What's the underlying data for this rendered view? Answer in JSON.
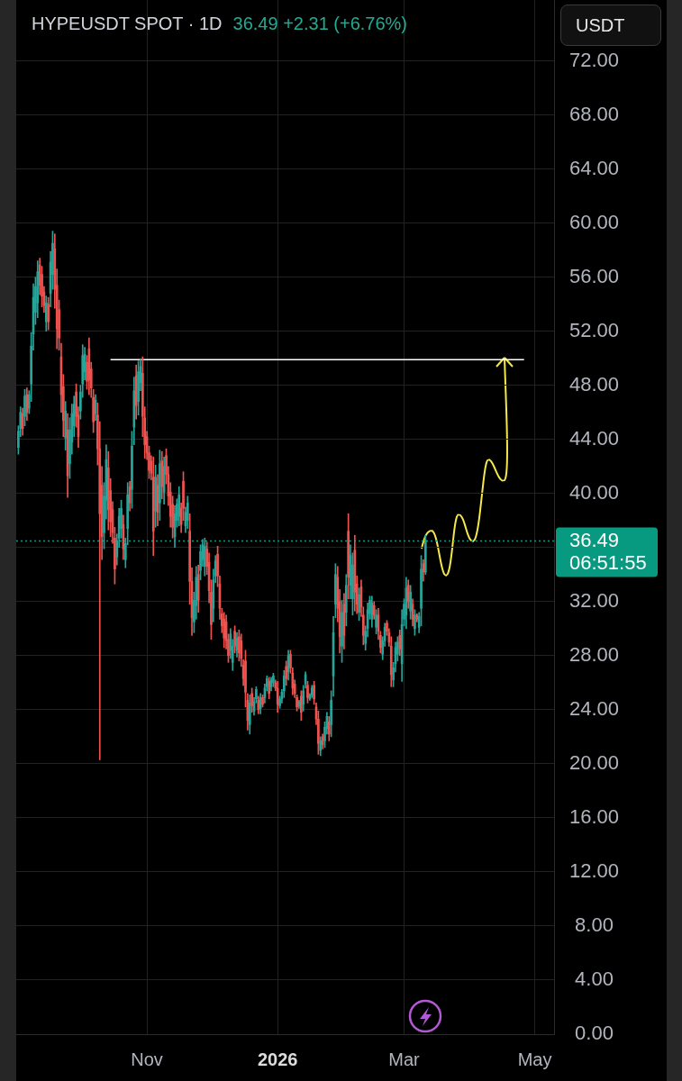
{
  "chart_data": {
    "type": "candlestick",
    "title": "HYPEUSDT SPOT · 1D",
    "subtitle": "36.49 +2.31 (+6.76%)",
    "ylabel": "USDT",
    "annotations": [
      "06:51:55"
    ],
    "xlim": [
      "2025-09-01",
      "2026-05-10"
    ],
    "xticks": [
      {
        "value": "2025-11-01",
        "label": "Nov"
      },
      {
        "value": "2026-01-01",
        "label": "2026"
      },
      {
        "value": "2026-03-01",
        "label": "Mar"
      },
      {
        "value": "2026-05-01",
        "label": "May"
      }
    ],
    "ylim": [
      0,
      76.5
    ],
    "yticks": [
      {
        "value": 0,
        "label": "0.00"
      },
      {
        "value": 4,
        "label": "4.00"
      },
      {
        "value": 8,
        "label": "8.00"
      },
      {
        "value": 12,
        "label": "12.00"
      },
      {
        "value": 16,
        "label": "16.00"
      },
      {
        "value": 20,
        "label": "20.00"
      },
      {
        "value": 24,
        "label": "24.00"
      },
      {
        "value": 28,
        "label": "28.00"
      },
      {
        "value": 32,
        "label": "32.00"
      },
      {
        "value": 36,
        "label": null
      },
      {
        "value": 40,
        "label": "40.00"
      },
      {
        "value": 44,
        "label": "44.00"
      },
      {
        "value": 48,
        "label": "48.00"
      },
      {
        "value": 52,
        "label": "52.00"
      },
      {
        "value": 56,
        "label": "56.00"
      },
      {
        "value": 60,
        "label": "60.00"
      },
      {
        "value": 64,
        "label": "64.00"
      },
      {
        "value": 68,
        "label": "68.00"
      },
      {
        "value": 72,
        "label": "72.00"
      }
    ],
    "grid": true,
    "ref_lines": [
      {
        "axis": "y",
        "value": 36.49,
        "label": "36.49",
        "color": "#089981",
        "line_style": "dotted"
      }
    ],
    "series": [
      {
        "x": [
          "2025-09-02",
          "2025-09-03",
          "2025-09-04",
          "2025-09-05",
          "2025-09-06",
          "2025-09-07",
          "2025-09-08",
          "2025-09-09",
          "2025-09-10",
          "2025-09-11",
          "2025-09-12",
          "2025-09-13",
          "2025-09-14",
          "2025-09-15",
          "2025-09-16",
          "2025-09-17",
          "2025-09-18",
          "2025-09-19",
          "2025-09-20",
          "2025-09-21",
          "2025-09-22",
          "2025-09-23",
          "2025-09-24",
          "2025-09-25",
          "2025-09-26",
          "2025-09-27",
          "2025-09-28",
          "2025-09-29",
          "2025-09-30",
          "2025-10-01",
          "2025-10-02",
          "2025-10-03",
          "2025-10-04",
          "2025-10-05",
          "2025-10-06",
          "2025-10-07",
          "2025-10-08",
          "2025-10-09",
          "2025-10-10",
          "2025-10-11",
          "2025-10-12",
          "2025-10-13",
          "2025-10-14",
          "2025-10-15",
          "2025-10-16",
          "2025-10-17",
          "2025-10-18",
          "2025-10-19",
          "2025-10-20",
          "2025-10-21",
          "2025-10-22",
          "2025-10-23",
          "2025-10-24",
          "2025-10-25",
          "2025-10-26",
          "2025-10-27",
          "2025-10-28",
          "2025-10-29",
          "2025-10-30",
          "2025-10-31",
          "2025-11-01",
          "2025-11-02",
          "2025-11-03",
          "2025-11-04",
          "2025-11-05",
          "2025-11-06",
          "2025-11-07",
          "2025-11-08",
          "2025-11-09",
          "2025-11-10",
          "2025-11-11",
          "2025-11-12",
          "2025-11-13",
          "2025-11-14",
          "2025-11-15",
          "2025-11-16",
          "2025-11-17",
          "2025-11-18",
          "2025-11-19",
          "2025-11-20",
          "2025-11-21",
          "2025-11-22",
          "2025-11-23",
          "2025-11-24",
          "2025-11-25",
          "2025-11-26",
          "2025-11-27",
          "2025-11-28",
          "2025-11-29",
          "2025-11-30",
          "2025-12-01",
          "2025-12-02",
          "2025-12-03",
          "2025-12-04",
          "2025-12-05",
          "2025-12-06",
          "2025-12-07",
          "2025-12-08",
          "2025-12-09",
          "2025-12-10",
          "2025-12-11",
          "2025-12-12",
          "2025-12-13",
          "2025-12-14",
          "2025-12-15",
          "2025-12-16",
          "2025-12-17",
          "2025-12-18",
          "2025-12-19",
          "2025-12-20",
          "2025-12-21",
          "2025-12-22",
          "2025-12-23",
          "2025-12-24",
          "2025-12-25",
          "2025-12-26",
          "2025-12-27",
          "2025-12-28",
          "2025-12-29",
          "2025-12-30",
          "2025-12-31",
          "2026-01-01",
          "2026-01-02",
          "2026-01-03",
          "2026-01-04",
          "2026-01-05",
          "2026-01-06",
          "2026-01-07",
          "2026-01-08",
          "2026-01-09",
          "2026-01-10",
          "2026-01-11",
          "2026-01-12",
          "2026-01-13",
          "2026-01-14",
          "2026-01-15",
          "2026-01-16",
          "2026-01-17",
          "2026-01-18",
          "2026-01-19",
          "2026-01-20",
          "2026-01-21",
          "2026-01-22",
          "2026-01-23",
          "2026-01-24",
          "2026-01-25",
          "2026-01-26",
          "2026-01-27",
          "2026-01-28",
          "2026-01-29",
          "2026-01-30",
          "2026-01-31",
          "2026-02-01",
          "2026-02-02",
          "2026-02-03",
          "2026-02-04",
          "2026-02-05",
          "2026-02-06",
          "2026-02-07",
          "2026-02-08",
          "2026-02-09",
          "2026-02-10",
          "2026-02-11",
          "2026-02-12",
          "2026-02-13",
          "2026-02-14",
          "2026-02-15",
          "2026-02-16",
          "2026-02-17",
          "2026-02-18",
          "2026-02-19",
          "2026-02-20",
          "2026-02-21",
          "2026-02-22",
          "2026-02-23",
          "2026-02-24",
          "2026-02-25",
          "2026-02-26",
          "2026-02-27",
          "2026-02-28",
          "2026-03-01",
          "2026-03-02",
          "2026-03-03",
          "2026-03-04",
          "2026-03-05",
          "2026-03-06",
          "2026-03-07",
          "2026-03-08",
          "2026-03-09",
          "2026-03-10",
          "2026-03-11"
        ],
        "ohlc": [
          [
            43.4,
            45.0,
            42.9,
            44.6
          ],
          [
            44.8,
            46.4,
            44.2,
            46.0
          ],
          [
            45.9,
            46.3,
            44.3,
            44.8
          ],
          [
            45.7,
            47.7,
            45.0,
            47.2
          ],
          [
            47.3,
            47.8,
            45.4,
            46.0
          ],
          [
            46.3,
            47.6,
            45.9,
            47.3
          ],
          [
            48.1,
            51.9,
            46.8,
            50.9
          ],
          [
            51.8,
            55.5,
            50.6,
            54.5
          ],
          [
            53.4,
            56.0,
            52.5,
            55.3
          ],
          [
            54.1,
            57.2,
            53.0,
            56.4
          ],
          [
            56.9,
            57.4,
            54.7,
            55.4
          ],
          [
            56.2,
            56.8,
            53.8,
            54.6
          ],
          [
            54.9,
            55.3,
            53.4,
            53.9
          ],
          [
            52.7,
            54.6,
            52.0,
            54.1
          ],
          [
            54.0,
            54.5,
            52.1,
            52.7
          ],
          [
            54.8,
            57.9,
            53.8,
            57.1
          ],
          [
            56.2,
            59.4,
            55.1,
            58.5
          ],
          [
            58.1,
            59.2,
            53.7,
            55.1
          ],
          [
            55.4,
            56.6,
            50.7,
            52.2
          ],
          [
            53.6,
            54.3,
            50.6,
            51.5
          ],
          [
            50.1,
            51.1,
            46.0,
            47.3
          ],
          [
            47.9,
            48.8,
            44.2,
            45.4
          ],
          [
            44.1,
            46.8,
            43.2,
            46.1
          ],
          [
            44.7,
            45.9,
            39.7,
            41.3
          ],
          [
            42.2,
            45.6,
            41.1,
            44.7
          ],
          [
            43.8,
            46.6,
            42.9,
            45.9
          ],
          [
            45.0,
            47.2,
            44.2,
            46.6
          ],
          [
            47.5,
            48.1,
            44.9,
            45.7
          ],
          [
            45.8,
            46.4,
            43.4,
            44.2
          ],
          [
            46.1,
            48.0,
            45.5,
            47.5
          ],
          [
            48.1,
            51.0,
            47.1,
            50.2
          ],
          [
            49.0,
            50.8,
            48.4,
            50.3
          ],
          [
            49.7,
            50.2,
            47.7,
            48.3
          ],
          [
            50.7,
            51.5,
            47.3,
            48.4
          ],
          [
            49.2,
            49.7,
            47.1,
            47.8
          ],
          [
            47.1,
            47.7,
            44.5,
            45.3
          ],
          [
            45.9,
            47.3,
            45.4,
            46.9
          ],
          [
            45.8,
            46.7,
            42.1,
            43.3
          ],
          [
            43.3,
            45.3,
            20.3,
            38.5
          ],
          [
            40.6,
            42.0,
            35.1,
            36.8
          ],
          [
            37.1,
            40.8,
            35.9,
            39.8
          ],
          [
            39.5,
            43.6,
            38.1,
            42.5
          ],
          [
            41.9,
            43.1,
            37.3,
            38.8
          ],
          [
            40.2,
            41.1,
            36.8,
            37.9
          ],
          [
            38.8,
            39.4,
            36.3,
            37.1
          ],
          [
            36.7,
            37.5,
            33.3,
            34.4
          ],
          [
            35.3,
            37.0,
            34.7,
            36.5
          ],
          [
            36.7,
            38.9,
            36.0,
            38.3
          ],
          [
            37.4,
            39.5,
            36.7,
            38.9
          ],
          [
            37.7,
            38.4,
            35.1,
            35.9
          ],
          [
            35.1,
            36.7,
            34.5,
            36.3
          ],
          [
            37.4,
            40.8,
            36.2,
            39.9
          ],
          [
            40.5,
            40.9,
            38.7,
            39.3
          ],
          [
            40.3,
            44.6,
            38.9,
            43.5
          ],
          [
            44.9,
            48.6,
            43.6,
            47.6
          ],
          [
            48.7,
            49.5,
            45.5,
            46.5
          ],
          [
            46.8,
            49.8,
            45.8,
            49.0
          ],
          [
            48.2,
            49.9,
            47.6,
            49.4
          ],
          [
            48.9,
            50.1,
            44.2,
            45.7
          ],
          [
            45.6,
            46.4,
            42.6,
            43.6
          ],
          [
            44.2,
            44.6,
            42.5,
            43.0
          ],
          [
            43.0,
            43.5,
            41.1,
            41.7
          ],
          [
            42.4,
            42.8,
            41.0,
            41.5
          ],
          [
            41.2,
            42.7,
            35.4,
            37.2
          ],
          [
            38.7,
            42.1,
            37.5,
            41.2
          ],
          [
            40.6,
            41.4,
            37.6,
            38.6
          ],
          [
            39.3,
            43.2,
            38.0,
            42.2
          ],
          [
            42.4,
            43.1,
            39.6,
            40.5
          ],
          [
            40.1,
            42.7,
            39.2,
            42.0
          ],
          [
            42.8,
            43.3,
            40.7,
            41.4
          ],
          [
            41.4,
            42.0,
            39.1,
            39.8
          ],
          [
            40.1,
            40.8,
            37.5,
            38.3
          ],
          [
            39.2,
            39.8,
            36.7,
            37.5
          ],
          [
            36.8,
            39.1,
            36.0,
            38.5
          ],
          [
            38.0,
            39.6,
            37.5,
            39.2
          ],
          [
            38.3,
            40.5,
            37.6,
            39.9
          ],
          [
            38.9,
            39.3,
            37.1,
            37.7
          ],
          [
            40.9,
            41.6,
            38.0,
            38.9
          ],
          [
            37.6,
            39.0,
            37.1,
            38.6
          ],
          [
            38.0,
            39.8,
            37.4,
            39.3
          ],
          [
            37.2,
            38.5,
            31.8,
            33.5
          ],
          [
            33.5,
            34.5,
            29.5,
            30.8
          ],
          [
            30.5,
            32.7,
            29.7,
            32.1
          ],
          [
            31.7,
            34.6,
            30.7,
            33.8
          ],
          [
            34.0,
            34.7,
            31.2,
            32.1
          ],
          [
            34.3,
            36.2,
            33.6,
            35.7
          ],
          [
            35.1,
            36.6,
            34.6,
            36.2
          ],
          [
            34.6,
            36.7,
            33.9,
            36.1
          ],
          [
            35.9,
            36.4,
            34.0,
            34.6
          ],
          [
            34.9,
            35.6,
            31.9,
            32.8
          ],
          [
            32.7,
            33.6,
            29.2,
            30.3
          ],
          [
            31.5,
            34.4,
            30.5,
            33.6
          ],
          [
            33.9,
            35.4,
            33.4,
            35.0
          ],
          [
            35.5,
            36.1,
            33.1,
            33.9
          ],
          [
            33.3,
            33.9,
            30.7,
            31.5
          ],
          [
            31.1,
            31.5,
            29.7,
            30.2
          ],
          [
            30.7,
            31.2,
            28.6,
            29.3
          ],
          [
            30.5,
            31.0,
            28.5,
            29.1
          ],
          [
            29.2,
            29.6,
            27.5,
            28.0
          ],
          [
            28.4,
            30.0,
            27.8,
            29.6
          ],
          [
            27.5,
            29.2,
            26.9,
            28.7
          ],
          [
            29.8,
            30.2,
            28.2,
            28.7
          ],
          [
            28.4,
            29.7,
            27.9,
            29.3
          ],
          [
            29.4,
            29.9,
            27.6,
            28.2
          ],
          [
            29.1,
            29.6,
            27.2,
            27.8
          ],
          [
            27.3,
            27.7,
            25.8,
            26.3
          ],
          [
            27.6,
            28.4,
            24.2,
            25.3
          ],
          [
            24.7,
            25.2,
            22.5,
            23.2
          ],
          [
            22.9,
            25.1,
            22.2,
            24.5
          ],
          [
            25.2,
            25.6,
            23.8,
            24.3
          ],
          [
            23.9,
            24.9,
            23.6,
            24.6
          ],
          [
            24.8,
            25.7,
            24.5,
            25.5
          ],
          [
            24.7,
            25.0,
            23.7,
            24.0
          ],
          [
            24.1,
            25.2,
            23.7,
            24.9
          ],
          [
            24.9,
            25.1,
            24.2,
            24.4
          ],
          [
            24.9,
            25.9,
            24.5,
            25.6
          ],
          [
            25.7,
            26.5,
            25.4,
            26.3
          ],
          [
            26.1,
            26.4,
            24.8,
            25.2
          ],
          [
            25.7,
            26.4,
            25.4,
            26.2
          ],
          [
            26.0,
            26.7,
            25.7,
            26.5
          ],
          [
            26.0,
            26.2,
            25.4,
            25.6
          ],
          [
            25.6,
            26.1,
            23.8,
            24.4
          ],
          [
            24.3,
            25.0,
            24.1,
            24.8
          ],
          [
            24.8,
            25.5,
            24.5,
            25.3
          ],
          [
            25.4,
            26.9,
            24.9,
            26.5
          ],
          [
            27.2,
            27.6,
            25.8,
            26.3
          ],
          [
            26.8,
            28.4,
            26.2,
            28.0
          ],
          [
            28.1,
            28.4,
            26.7,
            27.1
          ],
          [
            26.7,
            27.1,
            25.1,
            25.6
          ],
          [
            25.9,
            26.2,
            24.9,
            25.2
          ],
          [
            24.9,
            25.1,
            23.9,
            24.2
          ],
          [
            24.3,
            24.7,
            24.1,
            24.6
          ],
          [
            25.0,
            25.4,
            23.2,
            23.8
          ],
          [
            24.4,
            25.8,
            23.9,
            25.4
          ],
          [
            25.9,
            26.8,
            25.6,
            26.6
          ],
          [
            25.8,
            26.1,
            24.5,
            24.9
          ],
          [
            24.8,
            25.2,
            24.7,
            25.1
          ],
          [
            25.1,
            25.8,
            24.9,
            25.6
          ],
          [
            25.8,
            26.1,
            24.4,
            24.8
          ],
          [
            24.2,
            24.5,
            22.9,
            23.3
          ],
          [
            23.3,
            23.9,
            20.7,
            21.5
          ],
          [
            21.0,
            22.0,
            20.6,
            21.7
          ],
          [
            22.0,
            22.2,
            21.1,
            21.4
          ],
          [
            21.7,
            23.1,
            21.2,
            22.7
          ],
          [
            22.6,
            23.8,
            22.2,
            23.5
          ],
          [
            23.1,
            23.5,
            21.7,
            22.2
          ],
          [
            22.9,
            25.4,
            22.0,
            24.7
          ],
          [
            26.5,
            30.9,
            25.0,
            29.7
          ],
          [
            31.8,
            34.8,
            30.8,
            34.0
          ],
          [
            33.8,
            34.6,
            30.5,
            31.5
          ],
          [
            32.0,
            32.9,
            28.2,
            29.4
          ],
          [
            28.7,
            32.1,
            27.5,
            31.2
          ],
          [
            31.8,
            32.6,
            28.5,
            29.5
          ],
          [
            31.2,
            34.0,
            30.2,
            33.2
          ],
          [
            37.2,
            38.5,
            32.2,
            33.8
          ],
          [
            33.2,
            36.2,
            32.2,
            35.4
          ],
          [
            32.2,
            35.6,
            31.0,
            34.7
          ],
          [
            35.8,
            36.9,
            31.3,
            32.7
          ],
          [
            33.3,
            33.9,
            31.1,
            31.8
          ],
          [
            31.2,
            33.0,
            30.6,
            32.5
          ],
          [
            33.1,
            33.6,
            30.9,
            31.6
          ],
          [
            31.0,
            31.6,
            28.8,
            29.5
          ],
          [
            28.9,
            30.2,
            28.4,
            29.8
          ],
          [
            30.0,
            31.9,
            29.4,
            31.4
          ],
          [
            31.1,
            32.4,
            30.7,
            32.1
          ],
          [
            30.7,
            32.4,
            30.1,
            31.9
          ],
          [
            31.7,
            32.0,
            30.7,
            31.0
          ],
          [
            30.1,
            31.4,
            29.6,
            31.0
          ],
          [
            31.0,
            31.5,
            29.2,
            29.8
          ],
          [
            29.5,
            29.8,
            28.2,
            28.6
          ],
          [
            28.1,
            29.4,
            27.7,
            29.1
          ],
          [
            29.1,
            30.4,
            28.7,
            30.1
          ],
          [
            30.4,
            30.6,
            29.5,
            29.8
          ],
          [
            29.7,
            30.0,
            28.7,
            29.0
          ],
          [
            28.7,
            29.4,
            25.7,
            26.6
          ],
          [
            26.2,
            27.5,
            25.7,
            27.1
          ],
          [
            27.4,
            29.0,
            26.8,
            28.6
          ],
          [
            28.1,
            29.4,
            27.6,
            29.0
          ],
          [
            29.5,
            29.9,
            28.0,
            28.5
          ],
          [
            27.4,
            31.4,
            26.1,
            30.3
          ],
          [
            30.7,
            32.2,
            30.2,
            31.8
          ],
          [
            31.0,
            33.8,
            30.0,
            33.0
          ],
          [
            33.2,
            33.6,
            31.5,
            32.0
          ],
          [
            31.3,
            33.2,
            30.7,
            32.7
          ],
          [
            31.8,
            32.2,
            30.2,
            30.7
          ],
          [
            30.0,
            31.4,
            29.5,
            31.0
          ],
          [
            31.0,
            31.1,
            30.5,
            30.7
          ],
          [
            30.1,
            31.2,
            29.7,
            30.9
          ],
          [
            31.5,
            35.4,
            30.2,
            34.4
          ],
          [
            34.8,
            35.1,
            33.5,
            34.18
          ],
          [
            34.18,
            36.9,
            34.0,
            36.49
          ]
        ],
        "colors": [
          "#26a69a",
          "#26a69a",
          "#ef5350",
          "#26a69a",
          "#ef5350",
          "#26a69a",
          "#26a69a",
          "#26a69a",
          "#26a69a",
          "#26a69a",
          "#ef5350",
          "#ef5350",
          "#ef5350",
          "#26a69a",
          "#ef5350",
          "#26a69a",
          "#26a69a",
          "#ef5350",
          "#ef5350",
          "#ef5350",
          "#ef5350",
          "#ef5350",
          "#26a69a",
          "#ef5350",
          "#26a69a",
          "#26a69a",
          "#26a69a",
          "#ef5350",
          "#ef5350",
          "#26a69a",
          "#26a69a",
          "#26a69a",
          "#ef5350",
          "#ef5350",
          "#ef5350",
          "#ef5350",
          "#26a69a",
          "#ef5350",
          "#ef5350",
          "#ef5350",
          "#26a69a",
          "#26a69a",
          "#ef5350",
          "#ef5350",
          "#ef5350",
          "#ef5350",
          "#26a69a",
          "#26a69a",
          "#26a69a",
          "#ef5350",
          "#26a69a",
          "#26a69a",
          "#ef5350",
          "#26a69a",
          "#26a69a",
          "#ef5350",
          "#26a69a",
          "#26a69a",
          "#ef5350",
          "#ef5350",
          "#ef5350",
          "#ef5350",
          "#ef5350",
          "#ef5350",
          "#26a69a",
          "#ef5350",
          "#26a69a",
          "#ef5350",
          "#26a69a",
          "#ef5350",
          "#ef5350",
          "#ef5350",
          "#ef5350",
          "#26a69a",
          "#26a69a",
          "#26a69a",
          "#ef5350",
          "#ef5350",
          "#26a69a",
          "#26a69a",
          "#ef5350",
          "#ef5350",
          "#26a69a",
          "#26a69a",
          "#ef5350",
          "#26a69a",
          "#26a69a",
          "#26a69a",
          "#ef5350",
          "#ef5350",
          "#ef5350",
          "#26a69a",
          "#26a69a",
          "#ef5350",
          "#ef5350",
          "#ef5350",
          "#ef5350",
          "#ef5350",
          "#ef5350",
          "#26a69a",
          "#26a69a",
          "#ef5350",
          "#26a69a",
          "#ef5350",
          "#ef5350",
          "#ef5350",
          "#ef5350",
          "#ef5350",
          "#26a69a",
          "#ef5350",
          "#26a69a",
          "#26a69a",
          "#ef5350",
          "#26a69a",
          "#ef5350",
          "#26a69a",
          "#26a69a",
          "#ef5350",
          "#26a69a",
          "#26a69a",
          "#ef5350",
          "#ef5350",
          "#26a69a",
          "#26a69a",
          "#26a69a",
          "#ef5350",
          "#26a69a",
          "#ef5350",
          "#ef5350",
          "#ef5350",
          "#ef5350",
          "#26a69a",
          "#ef5350",
          "#26a69a",
          "#26a69a",
          "#ef5350",
          "#26a69a",
          "#26a69a",
          "#ef5350",
          "#ef5350",
          "#ef5350",
          "#26a69a",
          "#ef5350",
          "#26a69a",
          "#26a69a",
          "#ef5350",
          "#26a69a",
          "#26a69a",
          "#26a69a",
          "#ef5350",
          "#ef5350",
          "#26a69a",
          "#ef5350",
          "#26a69a",
          "#ef5350",
          "#26a69a",
          "#26a69a",
          "#ef5350",
          "#ef5350",
          "#26a69a",
          "#ef5350",
          "#ef5350",
          "#26a69a",
          "#26a69a",
          "#26a69a",
          "#26a69a",
          "#ef5350",
          "#26a69a",
          "#ef5350",
          "#ef5350",
          "#26a69a",
          "#26a69a",
          "#ef5350",
          "#ef5350",
          "#ef5350",
          "#26a69a",
          "#26a69a",
          "#26a69a",
          "#ef5350",
          "#26a69a",
          "#26a69a",
          "#26a69a",
          "#ef5350",
          "#26a69a",
          "#ef5350",
          "#26a69a",
          "#ef5350",
          "#26a69a",
          "#26a69a",
          "#ef5350",
          "#26a69a"
        ]
      },
      {
        "type": "line",
        "x": [
          "2025-10-15",
          "2026-04-26"
        ],
        "values": [
          49.9,
          49.9
        ],
        "color": "#ffffff"
      }
    ]
  }
}
